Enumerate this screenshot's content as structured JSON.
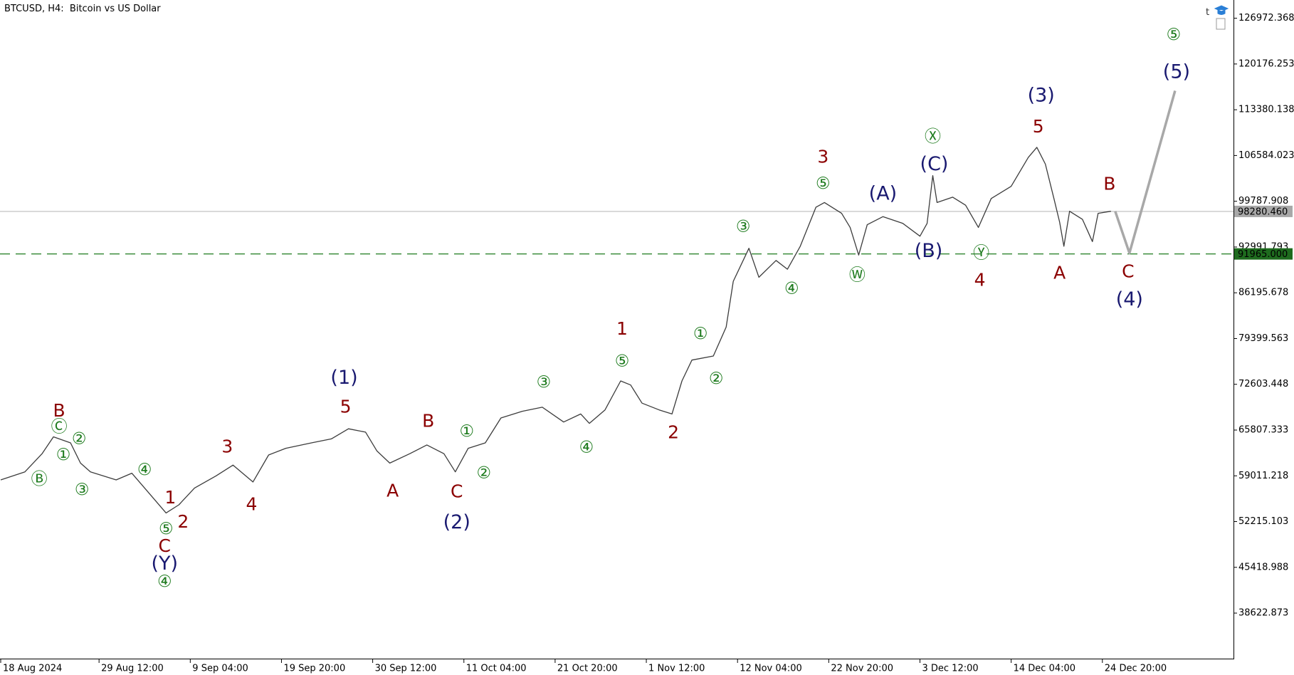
{
  "chart_data": {
    "type": "line",
    "title": "BTCUSD, H4:  Bitcoin vs US Dollar",
    "xlim": [
      "2024-08-17 22:00",
      "2025-01-09 04:00"
    ],
    "ylim": [
      31860,
      129680
    ],
    "yticks": [
      {
        "value": 38622.873,
        "label": "38622.873"
      },
      {
        "value": 45418.988,
        "label": "45418.988"
      },
      {
        "value": 52215.103,
        "label": "52215.103"
      },
      {
        "value": 59011.218,
        "label": "59011.218"
      },
      {
        "value": 65807.333,
        "label": "65807.333"
      },
      {
        "value": 72603.448,
        "label": "72603.448"
      },
      {
        "value": 79399.563,
        "label": "79399.563"
      },
      {
        "value": 86195.678,
        "label": "86195.678"
      },
      {
        "value": 92991.793,
        "label": "92991.793"
      },
      {
        "value": 99787.908,
        "label": "99787.908"
      },
      {
        "value": 106584.023,
        "label": "106584.023"
      },
      {
        "value": 113380.138,
        "label": "113380.138"
      },
      {
        "value": 120176.253,
        "label": "120176.253"
      },
      {
        "value": 126972.368,
        "label": "126972.368"
      }
    ],
    "xticks": [
      {
        "value": "2024-08-18 00:00",
        "label": "18 Aug 2024"
      },
      {
        "value": "2024-08-29 12:00",
        "label": "29 Aug 12:00"
      },
      {
        "value": "2024-09-09 04:00",
        "label": "9 Sep 04:00"
      },
      {
        "value": "2024-09-19 20:00",
        "label": "19 Sep 20:00"
      },
      {
        "value": "2024-09-30 12:00",
        "label": "30 Sep 12:00"
      },
      {
        "value": "2024-10-11 04:00",
        "label": "11 Oct 04:00"
      },
      {
        "value": "2024-10-21 20:00",
        "label": "21 Oct 20:00"
      },
      {
        "value": "2024-11-01 12:00",
        "label": "1 Nov 12:00"
      },
      {
        "value": "2024-11-12 04:00",
        "label": "12 Nov 04:00"
      },
      {
        "value": "2024-11-22 20:00",
        "label": "22 Nov 20:00"
      },
      {
        "value": "2024-12-03 12:00",
        "label": "3 Dec 12:00"
      },
      {
        "value": "2024-12-14 04:00",
        "label": "14 Dec 04:00"
      },
      {
        "value": "2024-12-24 20:00",
        "label": "24 Dec 20:00"
      }
    ],
    "series": [
      {
        "color": "#3c3c3c",
        "width": 1.3,
        "x": [
          "2024-08-18 00:00",
          "2024-08-20 20:00",
          "2024-08-22 20:00",
          "2024-08-24 04:00",
          "2024-08-26 04:00",
          "2024-08-27 08:00",
          "2024-08-28 12:00",
          "2024-08-31 12:00",
          "2024-09-02 08:00",
          "2024-09-03 20:00",
          "2024-09-06 08:00",
          "2024-09-07 20:00",
          "2024-09-09 16:00",
          "2024-09-12 04:00",
          "2024-09-14 04:00",
          "2024-09-16 12:00",
          "2024-09-18 08:00",
          "2024-09-20 08:00",
          "2024-09-23 08:00",
          "2024-09-25 16:00",
          "2024-09-27 16:00",
          "2024-09-29 16:00",
          "2024-10-01 00:00",
          "2024-10-02 12:00",
          "2024-10-04 20:00",
          "2024-10-06 20:00",
          "2024-10-08 20:00",
          "2024-10-10 04:00",
          "2024-10-11 16:00",
          "2024-10-13 16:00",
          "2024-10-15 12:00",
          "2024-10-18 00:00",
          "2024-10-20 08:00",
          "2024-10-22 20:00",
          "2024-10-24 20:00",
          "2024-10-25 20:00",
          "2024-10-27 16:00",
          "2024-10-29 12:00",
          "2024-10-30 16:00",
          "2024-11-01 00:00",
          "2024-11-03 00:00",
          "2024-11-04 12:00",
          "2024-11-05 16:00",
          "2024-11-06 20:00",
          "2024-11-09 08:00",
          "2024-11-10 20:00",
          "2024-11-11 16:00",
          "2024-11-13 12:00",
          "2024-11-14 16:00",
          "2024-11-16 16:00",
          "2024-11-18 00:00",
          "2024-11-19 12:00",
          "2024-11-21 08:00",
          "2024-11-22 08:00",
          "2024-11-24 08:00",
          "2024-11-25 08:00",
          "2024-11-26 08:00",
          "2024-11-27 08:00",
          "2024-11-29 04:00",
          "2024-12-01 12:00",
          "2024-12-03 12:00",
          "2024-12-04 08:00",
          "2024-12-05 00:00",
          "2024-12-05 12:00",
          "2024-12-07 08:00",
          "2024-12-08 20:00",
          "2024-12-10 08:00",
          "2024-12-11 20:00",
          "2024-12-14 04:00",
          "2024-12-16 04:00",
          "2024-12-17 04:00",
          "2024-12-18 04:00",
          "2024-12-19 04:00",
          "2024-12-19 20:00",
          "2024-12-20 08:00",
          "2024-12-21 00:00",
          "2024-12-22 12:00",
          "2024-12-23 16:00",
          "2024-12-24 08:00",
          "2024-12-25 20:00"
        ],
        "values": [
          58400,
          59600,
          62300,
          64800,
          63900,
          60900,
          59600,
          58400,
          59400,
          57200,
          53500,
          54700,
          57200,
          59000,
          60600,
          58100,
          62100,
          63100,
          63900,
          64500,
          66000,
          65500,
          62700,
          60900,
          62300,
          63600,
          62300,
          59600,
          63100,
          63900,
          67600,
          68600,
          69200,
          67000,
          68200,
          66800,
          68800,
          73100,
          72500,
          69800,
          68800,
          68200,
          73100,
          76200,
          76800,
          81100,
          87900,
          92800,
          88500,
          91000,
          89700,
          93100,
          98900,
          99600,
          98000,
          95900,
          91800,
          96300,
          97500,
          96500,
          94600,
          96500,
          103600,
          99600,
          100400,
          99200,
          95900,
          100200,
          102000,
          106300,
          107800,
          105300,
          100200,
          96700,
          93100,
          98300,
          97100,
          93800,
          98000,
          98300
        ]
      },
      {
        "color": "#a8a8a8",
        "width": 3.5,
        "x": [
          "2024-12-26 08:00",
          "2024-12-28 00:00",
          "2025-01-02 08:00"
        ],
        "values": [
          98300,
          92100,
          116200
        ]
      }
    ],
    "hlines": [
      {
        "value": 98280.46,
        "label": "98280.460",
        "color": "#c8c8c8",
        "box": "#a8a8a8",
        "dashed": false
      },
      {
        "value": 91965,
        "label": "91965.000",
        "color": "#1e7b1e",
        "box": "#1e6b1e",
        "dashed": true
      }
    ],
    "annotation_colors": {
      "red": "#8b0000",
      "navy": "#191970",
      "green": "#1e7b1e"
    },
    "annotations": [
      {
        "text": "Ⓑ",
        "x": "2024-08-22 12:00",
        "y": 58500,
        "color": "green"
      },
      {
        "text": "B",
        "x": "2024-08-24 20:00",
        "y": 68700,
        "color": "red"
      },
      {
        "text": "Ⓒ",
        "x": "2024-08-24 20:00",
        "y": 66300,
        "color": "green"
      },
      {
        "text": "②",
        "x": "2024-08-27 04:00",
        "y": 64500,
        "color": "green"
      },
      {
        "text": "①",
        "x": "2024-08-25 08:00",
        "y": 62100,
        "color": "green"
      },
      {
        "text": "③",
        "x": "2024-08-27 12:00",
        "y": 56900,
        "color": "green"
      },
      {
        "text": "④",
        "x": "2024-09-03 20:00",
        "y": 59900,
        "color": "green"
      },
      {
        "text": "1",
        "x": "2024-09-06 20:00",
        "y": 55800,
        "color": "red"
      },
      {
        "text": "2",
        "x": "2024-09-08 08:00",
        "y": 52200,
        "color": "red"
      },
      {
        "text": "⑤",
        "x": "2024-09-06 08:00",
        "y": 51100,
        "color": "green"
      },
      {
        "text": "C",
        "x": "2024-09-06 04:00",
        "y": 48600,
        "color": "red"
      },
      {
        "text": "(Y)",
        "x": "2024-09-06 04:00",
        "y": 46000,
        "color": "navy"
      },
      {
        "text": "④",
        "x": "2024-09-06 04:00",
        "y": 43300,
        "color": "green"
      },
      {
        "text": "3",
        "x": "2024-09-13 12:00",
        "y": 63400,
        "color": "red"
      },
      {
        "text": "4",
        "x": "2024-09-16 08:00",
        "y": 54800,
        "color": "red"
      },
      {
        "text": "(1)",
        "x": "2024-09-27 04:00",
        "y": 73600,
        "color": "navy"
      },
      {
        "text": "5",
        "x": "2024-09-27 08:00",
        "y": 69300,
        "color": "red"
      },
      {
        "text": "B",
        "x": "2024-10-07 00:00",
        "y": 67200,
        "color": "red"
      },
      {
        "text": "A",
        "x": "2024-10-02 20:00",
        "y": 56800,
        "color": "red"
      },
      {
        "text": "C",
        "x": "2024-10-10 08:00",
        "y": 56700,
        "color": "red"
      },
      {
        "text": "(2)",
        "x": "2024-10-10 08:00",
        "y": 52100,
        "color": "navy"
      },
      {
        "text": "①",
        "x": "2024-10-11 12:00",
        "y": 65600,
        "color": "green"
      },
      {
        "text": "②",
        "x": "2024-10-13 12:00",
        "y": 59400,
        "color": "green"
      },
      {
        "text": "③",
        "x": "2024-10-20 12:00",
        "y": 72900,
        "color": "green"
      },
      {
        "text": "④",
        "x": "2024-10-25 12:00",
        "y": 63200,
        "color": "green"
      },
      {
        "text": "1",
        "x": "2024-10-29 16:00",
        "y": 80900,
        "color": "red"
      },
      {
        "text": "⑤",
        "x": "2024-10-29 16:00",
        "y": 76000,
        "color": "green"
      },
      {
        "text": "2",
        "x": "2024-11-04 16:00",
        "y": 65500,
        "color": "red"
      },
      {
        "text": "①",
        "x": "2024-11-07 20:00",
        "y": 80100,
        "color": "green"
      },
      {
        "text": "②",
        "x": "2024-11-09 16:00",
        "y": 73400,
        "color": "green"
      },
      {
        "text": "③",
        "x": "2024-11-12 20:00",
        "y": 96000,
        "color": "green"
      },
      {
        "text": "④",
        "x": "2024-11-18 12:00",
        "y": 86800,
        "color": "green"
      },
      {
        "text": "3",
        "x": "2024-11-22 04:00",
        "y": 106400,
        "color": "red"
      },
      {
        "text": "⑤",
        "x": "2024-11-22 04:00",
        "y": 102400,
        "color": "green"
      },
      {
        "text": "(A)",
        "x": "2024-11-29 04:00",
        "y": 100900,
        "color": "navy"
      },
      {
        "text": "Ⓦ",
        "x": "2024-11-26 04:00",
        "y": 88800,
        "color": "green"
      },
      {
        "text": "Ⓧ",
        "x": "2024-12-05 00:00",
        "y": 109400,
        "color": "green"
      },
      {
        "text": "(C)",
        "x": "2024-12-05 04:00",
        "y": 105300,
        "color": "navy"
      },
      {
        "text": "(B)",
        "x": "2024-12-04 12:00",
        "y": 92400,
        "color": "navy"
      },
      {
        "text": "Ⓨ",
        "x": "2024-12-10 16:00",
        "y": 92100,
        "color": "green"
      },
      {
        "text": "4",
        "x": "2024-12-10 12:00",
        "y": 88100,
        "color": "red"
      },
      {
        "text": "(3)",
        "x": "2024-12-17 16:00",
        "y": 115500,
        "color": "navy"
      },
      {
        "text": "5",
        "x": "2024-12-17 08:00",
        "y": 110900,
        "color": "red"
      },
      {
        "text": "B",
        "x": "2024-12-25 16:00",
        "y": 102400,
        "color": "red"
      },
      {
        "text": "A",
        "x": "2024-12-19 20:00",
        "y": 89200,
        "color": "red"
      },
      {
        "text": "C",
        "x": "2024-12-27 20:00",
        "y": 89400,
        "color": "red"
      },
      {
        "text": "(4)",
        "x": "2024-12-28 00:00",
        "y": 85200,
        "color": "navy"
      },
      {
        "text": "⑤",
        "x": "2025-01-02 04:00",
        "y": 124500,
        "color": "green"
      },
      {
        "text": "(5)",
        "x": "2025-01-02 12:00",
        "y": 119000,
        "color": "navy"
      }
    ]
  }
}
